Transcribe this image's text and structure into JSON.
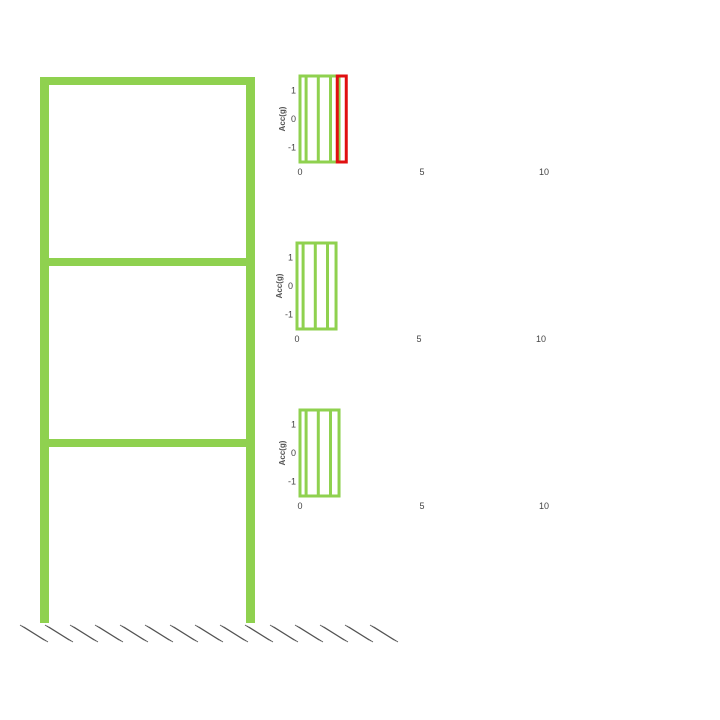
{
  "colors": {
    "frame": "#8fd14f",
    "highlight": "#e01010",
    "text": "#444444",
    "ground_hatch": "#555555"
  },
  "frame": {
    "stories": 3
  },
  "plots": [
    {
      "id": "story-3",
      "ylabel": "Acc(g)",
      "yticks": [
        "1",
        "0",
        "-1"
      ],
      "xticks": [
        "0",
        "5",
        "10"
      ],
      "xlim": [
        0,
        10
      ],
      "ylim": [
        -1.5,
        1.5
      ],
      "bars": [
        0.25,
        0.75,
        1.25
      ],
      "highlight_bar": 1.65
    },
    {
      "id": "story-2",
      "ylabel": "Acc(g)",
      "yticks": [
        "1",
        "0",
        "-1"
      ],
      "xticks": [
        "0",
        "5",
        "10"
      ],
      "xlim": [
        0,
        10
      ],
      "ylim": [
        -1.5,
        1.5
      ],
      "bars": [
        0.25,
        0.75,
        1.25
      ],
      "highlight_bar": null
    },
    {
      "id": "story-1",
      "ylabel": "Acc(g)",
      "yticks": [
        "1",
        "0",
        "-1"
      ],
      "xticks": [
        "0",
        "5",
        "10"
      ],
      "xlim": [
        0,
        10
      ],
      "ylim": [
        -1.5,
        1.5
      ],
      "bars": [
        0.25,
        0.75,
        1.25
      ],
      "highlight_bar": null
    }
  ]
}
